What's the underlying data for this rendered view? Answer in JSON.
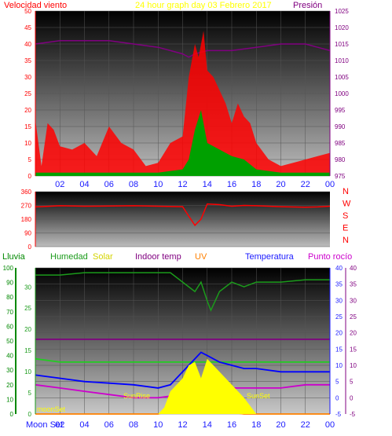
{
  "colors": {
    "wind_gust": "#ff0000",
    "wind_avg": "#00a000",
    "wind_dir_line": "#1e90ff",
    "pressure": "#800080",
    "dir": "#ff0000",
    "rain_axis": "#008800",
    "humidity": "#1b9b1b",
    "solar": "#ffff00",
    "solar_fill": "#ffff00",
    "indoor": "#800080",
    "uv": "#ff8000",
    "temp": "#0000ff",
    "dew": "#cc00cc",
    "green_line": "#22cc22",
    "axis_blue": "#1a1aff"
  },
  "chart_data": [
    {
      "type": "line",
      "panel": "wind",
      "title_left": "Velocidad viento",
      "title_center": "24 hour graph day   03 Febrero 2017",
      "title_right": "Presión",
      "ylim_left": [
        0,
        50
      ],
      "yticks_left": [
        "0",
        "5",
        "10",
        "15",
        "20",
        "25",
        "30",
        "35",
        "40",
        "45",
        "50"
      ],
      "ylim_right": [
        975,
        1025
      ],
      "yticks_right": [
        "975",
        "980",
        "985",
        "990",
        "995",
        "1000",
        "1005",
        "1010",
        "1015",
        "1020",
        "1025"
      ],
      "xticks": [
        "02",
        "04",
        "06",
        "08",
        "10",
        "12",
        "14",
        "16",
        "18",
        "20",
        "22",
        "00"
      ],
      "x_hours": [
        0,
        24
      ],
      "series": [
        {
          "key": "pressure",
          "x": [
            0,
            2,
            4,
            6,
            8,
            10,
            11,
            12,
            12.5,
            13,
            14,
            16,
            18,
            20,
            22,
            23,
            24
          ],
          "y": [
            1015,
            1016,
            1016,
            1016,
            1015,
            1014,
            1013,
            1012,
            1011,
            1012,
            1013,
            1013,
            1014,
            1015,
            1015,
            1014,
            1013
          ]
        },
        {
          "key": "gust",
          "x": [
            0,
            0.5,
            1,
            1.5,
            2,
            3,
            4,
            5,
            6,
            7,
            8,
            9,
            10,
            11,
            12,
            12.5,
            13,
            13.3,
            13.7,
            14,
            14.5,
            15,
            15.5,
            16,
            16.5,
            17,
            17.5,
            18,
            19,
            20,
            21,
            22,
            23,
            24
          ],
          "y": [
            17,
            3,
            16,
            14,
            9,
            8,
            10,
            6,
            15,
            10,
            8,
            3,
            4,
            10,
            12,
            30,
            40,
            36,
            44,
            32,
            30,
            26,
            22,
            16,
            22,
            18,
            16,
            10,
            5,
            3,
            4,
            5,
            6,
            7
          ]
        },
        {
          "key": "avg",
          "x": [
            0,
            2,
            4,
            6,
            8,
            10,
            12,
            12.5,
            13,
            13.5,
            14,
            15,
            16,
            17,
            18,
            20,
            22,
            24
          ],
          "y": [
            1,
            1,
            1,
            1,
            1,
            1,
            2,
            5,
            14,
            20,
            10,
            8,
            6,
            5,
            2,
            1,
            1,
            1
          ]
        }
      ]
    },
    {
      "type": "line",
      "panel": "direction",
      "yticks": [
        "0",
        "90",
        "180",
        "270",
        "360"
      ],
      "ylim": [
        0,
        360
      ],
      "compass": [
        "N",
        "W",
        "S",
        "E",
        "N"
      ],
      "series": [
        {
          "key": "dir",
          "x": [
            0,
            2,
            4,
            6,
            8,
            10,
            12,
            12.5,
            13,
            13.5,
            14,
            15,
            16,
            17,
            18,
            20,
            22,
            23,
            24
          ],
          "y": [
            260,
            268,
            265,
            266,
            268,
            265,
            262,
            200,
            140,
            180,
            280,
            275,
            265,
            270,
            268,
            262,
            258,
            260,
            265
          ]
        }
      ]
    },
    {
      "type": "line",
      "panel": "temp",
      "labels": {
        "rain": "Lluvia",
        "humidity": "Humedad",
        "solar": "Solar",
        "indoor": "Indoor temp",
        "uv": "UV",
        "temp": "Temperatura",
        "dew": "Punto rocío",
        "sunrise": "SunRise",
        "sunset": "SunSet",
        "moonset": "Moon Set",
        "moonrise": "moonSet"
      },
      "rain_ticks": [
        "0",
        "10",
        "20",
        "30",
        "40",
        "50",
        "60",
        "70",
        "80",
        "90",
        "100"
      ],
      "hum_ticks": [
        "0",
        "5",
        "10",
        "15",
        "20",
        "25",
        "30"
      ],
      "temp_ticks": [
        "-5",
        "0",
        "5",
        "10",
        "15",
        "20",
        "25",
        "30",
        "35",
        "40"
      ],
      "ylim_temp": [
        -5,
        40
      ],
      "xticks": [
        "02",
        "04",
        "06",
        "08",
        "10",
        "12",
        "14",
        "16",
        "18",
        "20",
        "22",
        "00"
      ],
      "series": [
        {
          "key": "humidity",
          "x": [
            0,
            2,
            4,
            6,
            8,
            10,
            11,
            12,
            12.5,
            13,
            13.5,
            14,
            14.3,
            15,
            16,
            17,
            18,
            20,
            22,
            24
          ],
          "y": [
            29.5,
            29.5,
            30,
            30,
            30,
            30,
            30,
            28,
            27,
            26,
            28,
            24,
            22,
            26,
            28,
            27,
            28,
            28,
            28.5,
            28.5
          ]
        },
        {
          "key": "indoor",
          "x": [
            0,
            4,
            8,
            12,
            16,
            20,
            24
          ],
          "y": [
            18,
            18,
            18,
            18,
            18,
            18,
            18
          ]
        },
        {
          "key": "green_line",
          "x": [
            0,
            2,
            4,
            6,
            8,
            10,
            12,
            14,
            16,
            18,
            20,
            22,
            24
          ],
          "y": [
            12,
            11,
            11,
            11,
            11,
            11,
            11,
            11,
            11,
            11,
            11,
            11,
            11
          ]
        },
        {
          "key": "temp",
          "x": [
            0,
            2,
            4,
            6,
            8,
            10,
            11,
            12,
            13,
            13.5,
            14,
            15,
            16,
            17,
            18,
            20,
            22,
            24
          ],
          "y": [
            7,
            6,
            5,
            4.5,
            4,
            3,
            4,
            8,
            12,
            14,
            13,
            11,
            10,
            9,
            9,
            8,
            8,
            8
          ]
        },
        {
          "key": "dew",
          "x": [
            0,
            2,
            4,
            6,
            8,
            10,
            12,
            13,
            14,
            16,
            18,
            20,
            22,
            24
          ],
          "y": [
            4,
            3,
            2,
            1,
            0,
            0,
            1,
            2,
            4,
            3,
            3,
            3,
            4,
            4
          ]
        },
        {
          "key": "uv",
          "x": [
            0,
            10,
            11,
            12,
            13,
            14,
            15,
            16,
            17,
            24
          ],
          "y": [
            -5,
            -5,
            -4,
            -3,
            -2,
            -3,
            -4,
            -4.5,
            -5,
            -5
          ]
        },
        {
          "key": "solar",
          "x": [
            0,
            10,
            10.5,
            11,
            12,
            12.5,
            13,
            13.5,
            14,
            15,
            16,
            17,
            18,
            24
          ],
          "y": [
            -5,
            -5,
            -3,
            2,
            6,
            10,
            11,
            6,
            12,
            8,
            4,
            0,
            -5,
            -5
          ]
        }
      ]
    }
  ]
}
